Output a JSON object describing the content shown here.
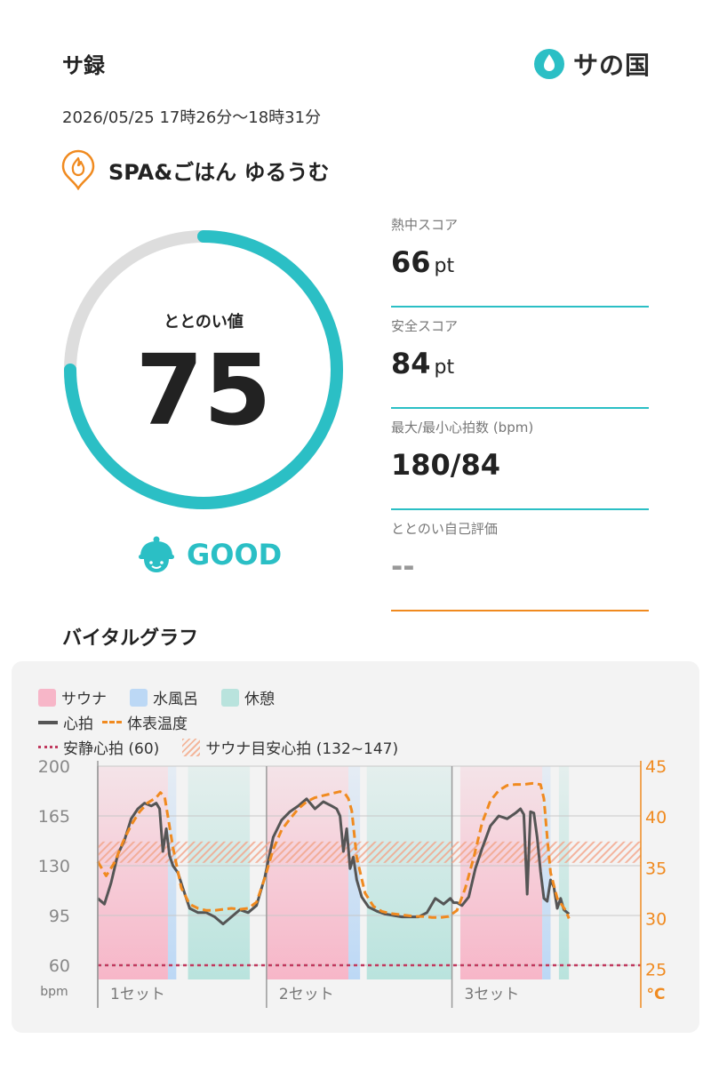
{
  "header": {
    "app_title": "サ録",
    "brand": "サの国"
  },
  "session": {
    "datetime": "2026/05/25 17時26分～18時31分",
    "facility": "SPA&ごはん ゆるうむ"
  },
  "score": {
    "label": "ととのい値",
    "value": "75",
    "fraction": 0.75,
    "rating": "GOOD"
  },
  "metrics": [
    {
      "label": "熱中スコア",
      "value": "66",
      "unit": "pt"
    },
    {
      "label": "安全スコア",
      "value": "84",
      "unit": "pt"
    },
    {
      "label": "最大/最小心拍数 (bpm)",
      "value": "180/84",
      "unit": ""
    },
    {
      "label": "ととのい自己評価",
      "value": "--",
      "unit": ""
    }
  ],
  "vital_graph": {
    "title": "バイタルグラフ",
    "legend": {
      "sauna": "サウナ",
      "water_bath": "水風呂",
      "rest": "休憩",
      "heart_rate": "心拍",
      "skin_temp": "体表温度",
      "resting_hr": "安静心拍 (60)",
      "sauna_target_hr": "サウナ目安心拍 (132~147)"
    },
    "colors": {
      "sauna": "#f7b6c8",
      "water_bath": "#bcd8f5",
      "rest": "#b9e3dd",
      "heart_rate": "#555555",
      "skin_temp": "#f08a1f",
      "resting_hr": "#c0395e",
      "target_hatch": "#f3b79c",
      "accent": "#2bbfc5"
    }
  },
  "chart_data": {
    "type": "line",
    "y_left": {
      "label": "bpm",
      "ticks": [
        "200",
        "165",
        "130",
        "95",
        "60"
      ],
      "min": 50,
      "max": 200
    },
    "y_right": {
      "label": "°C",
      "ticks": [
        "45",
        "40",
        "35",
        "30",
        "25"
      ],
      "min": 24,
      "max": 45
    },
    "x_labels": [
      "1セット",
      "2セット",
      "3セット"
    ],
    "x_range": [
      0,
      65
    ],
    "phases": [
      {
        "type": "sauna",
        "start": 0.0,
        "end": 8.4
      },
      {
        "type": "water_bath",
        "start": 8.4,
        "end": 9.4
      },
      {
        "type": "rest",
        "start": 10.8,
        "end": 18.2
      },
      {
        "type": "sauna",
        "start": 20.2,
        "end": 30.0
      },
      {
        "type": "water_bath",
        "start": 30.0,
        "end": 31.4
      },
      {
        "type": "rest",
        "start": 32.2,
        "end": 42.4
      },
      {
        "type": "sauna",
        "start": 43.4,
        "end": 53.2
      },
      {
        "type": "water_bath",
        "start": 53.2,
        "end": 54.2
      },
      {
        "type": "rest",
        "start": 55.2,
        "end": 56.4
      }
    ],
    "resting_hr": 60,
    "target_hr_range": [
      132,
      147
    ],
    "series": [
      {
        "name": "心拍",
        "axis": "left",
        "x": [
          0,
          0.8,
          1.6,
          2.4,
          3.2,
          4,
          4.8,
          5.6,
          6.4,
          7,
          7.4,
          7.8,
          8.2,
          8.6,
          9,
          9.6,
          10.2,
          11,
          12,
          13,
          14,
          15,
          16,
          17,
          18,
          19,
          20,
          21,
          22,
          23,
          24,
          25,
          26,
          27,
          28,
          28.6,
          29,
          29.4,
          29.8,
          30.2,
          30.6,
          31,
          31.6,
          32.4,
          33.4,
          34.4,
          35.4,
          36.4,
          37.4,
          38.4,
          39.4,
          40.4,
          41.4,
          42.2,
          42.6,
          43,
          43.6,
          44.4,
          45.2,
          46,
          47,
          48,
          49,
          50,
          50.6,
          51,
          51.4,
          51.8,
          52.2,
          52.6,
          53,
          53.4,
          53.8,
          54.2,
          54.6,
          55,
          55.4,
          55.8,
          56.4
        ],
        "y": [
          107,
          103,
          118,
          138,
          148,
          163,
          170,
          174,
          172,
          174,
          170,
          140,
          156,
          137,
          130,
          125,
          114,
          100,
          97,
          97,
          94,
          89,
          94,
          99,
          97,
          102,
          122,
          150,
          162,
          168,
          172,
          177,
          170,
          175,
          172,
          170,
          165,
          140,
          156,
          128,
          136,
          120,
          108,
          101,
          98,
          96,
          95,
          94,
          94,
          94,
          97,
          107,
          103,
          107,
          104,
          104,
          102,
          108,
          128,
          142,
          158,
          165,
          163,
          167,
          170,
          166,
          110,
          168,
          167,
          150,
          126,
          107,
          105,
          120,
          115,
          100,
          107,
          99,
          96
        ]
      },
      {
        "name": "体表温度",
        "axis": "right",
        "x": [
          0,
          1,
          2,
          3,
          4,
          5,
          6,
          7,
          7.5,
          8,
          8.4,
          9,
          10,
          11,
          12,
          13,
          14,
          15,
          16,
          17,
          18,
          19,
          20,
          21,
          22,
          23,
          24,
          25,
          26,
          27,
          28,
          29,
          29.6,
          30,
          30.4,
          31,
          32,
          33,
          34,
          35,
          36,
          37,
          38,
          39,
          40,
          41,
          42,
          43,
          44,
          45,
          46,
          47,
          48,
          49,
          50,
          51,
          52,
          53,
          53.4,
          53.8,
          54.2,
          55,
          56,
          56.4
        ],
        "y": [
          35.6,
          34.2,
          35.5,
          37.5,
          39.2,
          40.5,
          41.4,
          41.9,
          42.4,
          42.0,
          40.0,
          37.0,
          33.0,
          31.4,
          31.0,
          30.8,
          30.8,
          30.9,
          31.0,
          30.9,
          31.0,
          31.6,
          34.0,
          36.8,
          38.7,
          39.8,
          40.8,
          41.5,
          41.9,
          42.1,
          42.3,
          42.5,
          42.3,
          41.8,
          40.6,
          36.0,
          32.5,
          31.2,
          30.7,
          30.5,
          30.4,
          30.3,
          30.2,
          30.2,
          30.1,
          30.1,
          30.2,
          30.8,
          33.0,
          36.0,
          39.4,
          41.6,
          42.6,
          43.1,
          43.2,
          43.2,
          43.3,
          43.2,
          41.8,
          38.0,
          34.5,
          32.0,
          30.8,
          30.0
        ]
      }
    ]
  }
}
